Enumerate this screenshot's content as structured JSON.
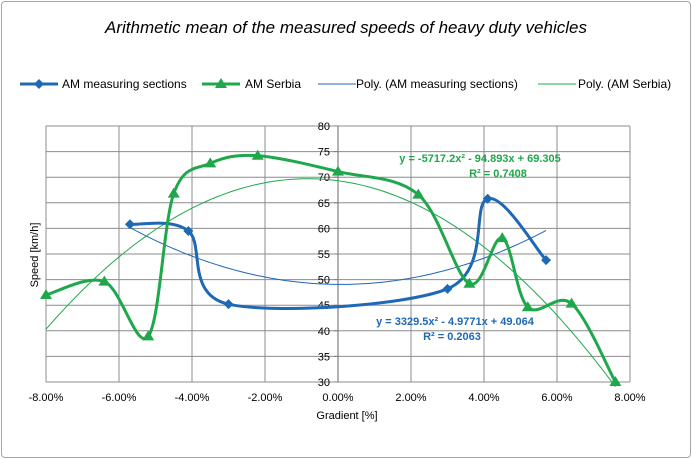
{
  "chart_data": {
    "type": "line",
    "title": "Arithmetic mean of the measured speeds of heavy duty vehicles",
    "xlabel": "Gradient [%]",
    "ylabel": "Speed [km/h]",
    "xlim": [
      -0.08,
      0.08
    ],
    "ylim": [
      30,
      80
    ],
    "x_ticks": [
      "-8.00%",
      "-6.00%",
      "-4.00%",
      "-2.00%",
      "0.00%",
      "2.00%",
      "4.00%",
      "6.00%",
      "8.00%"
    ],
    "y_ticks": [
      "30",
      "35",
      "40",
      "45",
      "50",
      "55",
      "60",
      "65",
      "70",
      "75",
      "80"
    ],
    "grid": true,
    "legend_position": "top",
    "series": [
      {
        "name": "AM measuring sections",
        "color": "#1f68b6",
        "marker": "diamond",
        "smooth": true,
        "points": [
          [
            -0.057,
            60.8
          ],
          [
            -0.041,
            59.5
          ],
          [
            -0.03,
            45.2
          ],
          [
            0.03,
            48.2
          ],
          [
            0.041,
            65.8
          ],
          [
            0.057,
            53.8
          ]
        ]
      },
      {
        "name": "AM Serbia",
        "color": "#1ea84b",
        "marker": "triangle",
        "smooth": true,
        "points": [
          [
            -0.08,
            47.0
          ],
          [
            -0.064,
            49.6
          ],
          [
            -0.052,
            38.9
          ],
          [
            -0.045,
            66.8
          ],
          [
            -0.035,
            72.7
          ],
          [
            -0.022,
            74.2
          ],
          [
            0.0,
            71.1
          ],
          [
            0.022,
            66.6
          ],
          [
            0.036,
            49.2
          ],
          [
            0.045,
            58.1
          ],
          [
            0.052,
            44.6
          ],
          [
            0.064,
            45.3
          ],
          [
            0.076,
            30.0
          ]
        ]
      },
      {
        "name": "Poly. (AM measuring sections)",
        "color": "#1f68b6",
        "type": "trendline",
        "coefficients": [
          3329.5,
          -4.9771,
          49.064
        ],
        "x_range": [
          -0.057,
          0.057
        ]
      },
      {
        "name": "Poly. (AM Serbia)",
        "color": "#1ea84b",
        "type": "trendline",
        "coefficients": [
          -5717.2,
          -94.893,
          69.305
        ],
        "x_range": [
          -0.08,
          0.076
        ]
      }
    ],
    "annotations": [
      {
        "text": "y = -5717.2x² - 94.893x + 69.305",
        "color": "#1ea84b"
      },
      {
        "text": "R² = 0.7408",
        "color": "#1ea84b"
      },
      {
        "text": "y = 3329.5x² - 4.9771x + 49.064",
        "color": "#1f68b6"
      },
      {
        "text": "R² = 0.2063",
        "color": "#1f68b6"
      }
    ]
  }
}
